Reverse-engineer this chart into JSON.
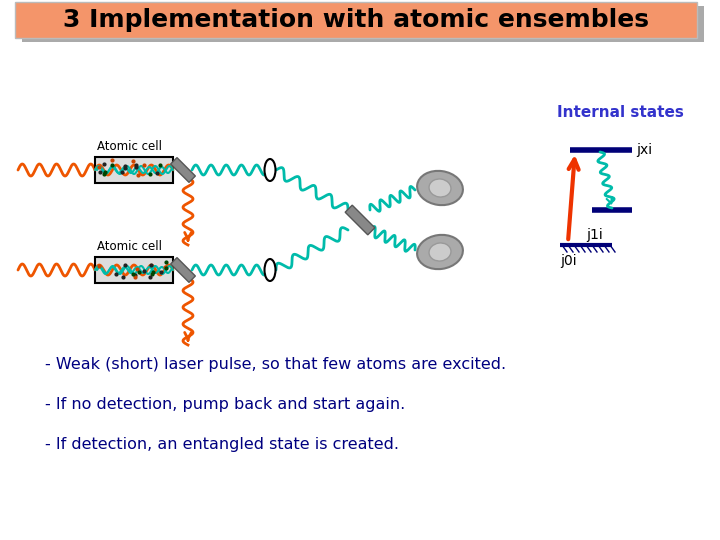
{
  "title": "3 Implementation with atomic ensembles",
  "title_bg": "#F4956A",
  "title_fontsize": 18,
  "bullet_lines": [
    "- Weak (short) laser pulse, so that few atoms are excited.",
    "- If no detection, pump back and start again.",
    "- If detection, an entangled state is created."
  ],
  "bullet_color": "#000080",
  "bullet_fontsize": 11.5,
  "internal_states_label": "Internal states",
  "internal_states_color": "#3333CC",
  "level_jxi_label": "jxi",
  "level_j1i_label": "j1i",
  "level_j0i_label": "j0i",
  "level_color": "#000077",
  "atomic_cell_label": "Atomic cell",
  "orange_wave_color": "#EE5500",
  "teal_wave_color": "#00BBAA",
  "arrow_red_color": "#EE3300",
  "bg_color": "#FFFFFF",
  "gray_color": "#888888"
}
